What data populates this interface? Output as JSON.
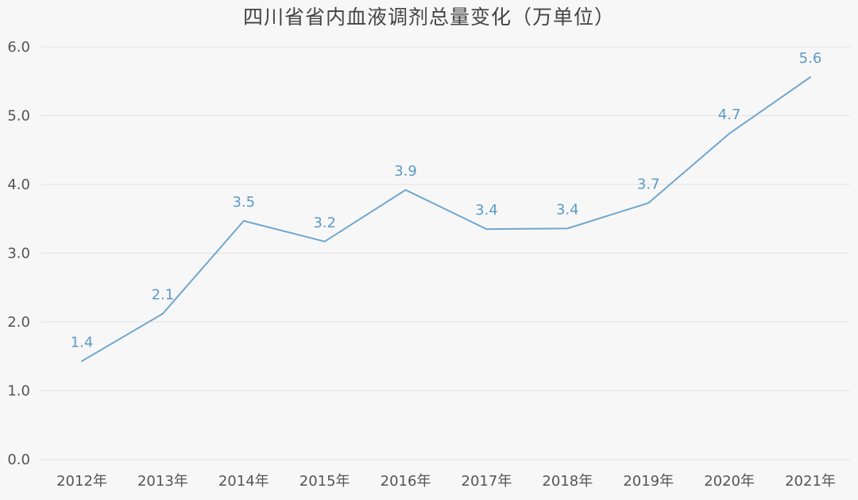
{
  "chart_data": {
    "type": "line",
    "title": "四川省省内血液调剂总量变化（万单位）",
    "xlabel": "",
    "ylabel": "",
    "categories": [
      "2012年",
      "2013年",
      "2014年",
      "2015年",
      "2016年",
      "2017年",
      "2018年",
      "2019年",
      "2020年",
      "2021年"
    ],
    "series": [
      {
        "values": [
          1.43,
          2.12,
          3.47,
          3.17,
          3.92,
          3.35,
          3.36,
          3.73,
          4.74,
          5.56
        ],
        "labels": [
          "1.4",
          "2.1",
          "3.5",
          "3.2",
          "3.9",
          "3.4",
          "3.4",
          "3.7",
          "4.7",
          "5.6"
        ]
      }
    ],
    "ylim": [
      0,
      6
    ],
    "yticks": [
      "0.0",
      "1.0",
      "2.0",
      "3.0",
      "4.0",
      "5.0",
      "6.0"
    ],
    "grid": "horizontal",
    "legend": "none",
    "colors": {
      "line": "#6fa7cf",
      "data_label": "#5b9bc8",
      "grid": "#e2e2e2",
      "background": "#f7f7f7"
    }
  }
}
